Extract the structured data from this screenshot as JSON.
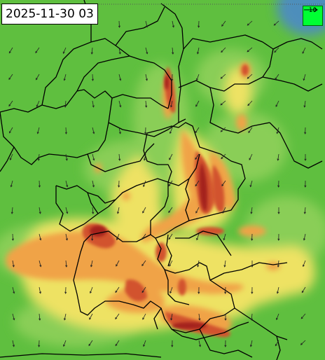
{
  "map": {
    "timestamp": "2025-11-30 03",
    "legend": {
      "reference_value": "10",
      "color": "#00ff33"
    },
    "colors": {
      "green": "#5fbf3f",
      "light_green": "#8fd05a",
      "yellow": "#eee264",
      "orange": "#f0a347",
      "red": "#d2522d",
      "dark_red": "#a4221e",
      "blue": "#4b86d1",
      "border": "#000000"
    },
    "icons": [
      "wind-arrow-icon"
    ]
  }
}
